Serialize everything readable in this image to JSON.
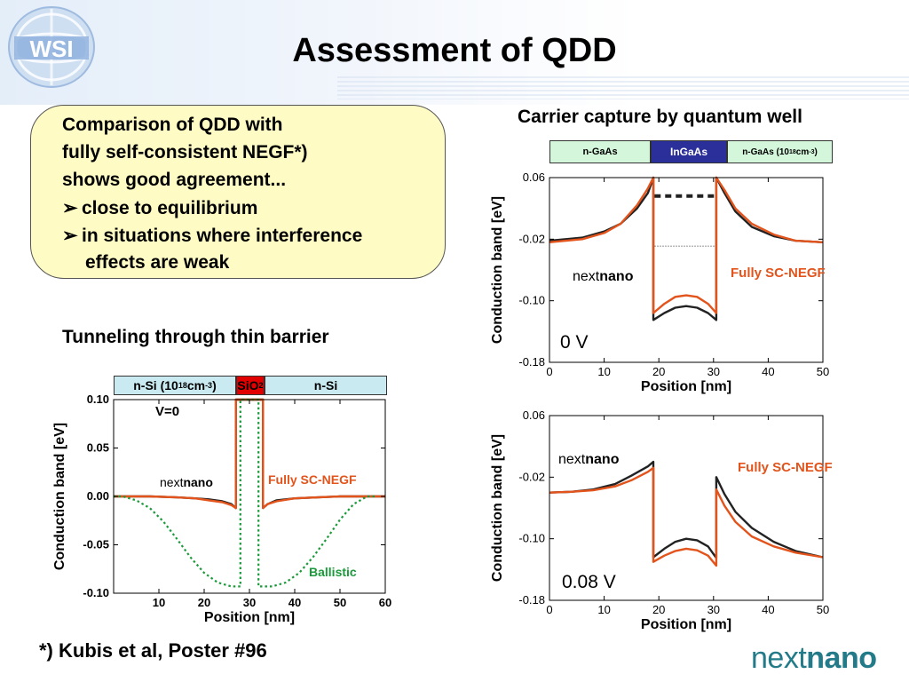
{
  "slide": {
    "title": "Assessment of QDD",
    "logo_text": "WSI",
    "brand_light": "next",
    "brand_bold": "nano",
    "footnote": "*) Kubis et al, Poster #96"
  },
  "summary": {
    "line1": "Comparison of QDD with",
    "line2": "fully self-consistent NEGF*)",
    "line3": "shows good agreement...",
    "bullet1": "close to equilibrium",
    "bullet2a": "in situations where interference",
    "bullet2b": "effects are weak",
    "bullet_glyph": "➢"
  },
  "headings": {
    "tunneling": "Tunneling through thin barrier",
    "capture": "Carrier capture by quantum well"
  },
  "layers": {
    "tunnel": [
      "n-Si (10",
      "18",
      " cm",
      "-3",
      ")",
      "SiO",
      "2",
      "n-Si"
    ],
    "well": [
      "n-GaAs",
      "InGaAs",
      "n-GaAs (10",
      "18",
      " cm",
      "-3",
      ")"
    ]
  },
  "colors": {
    "nextnano": "#222222",
    "negf": "#e2541c",
    "ballistic": "#1a9a3a",
    "brand": "#237b89",
    "box_fill": "#fffbc4",
    "layer_green": "#d4f7dc",
    "layer_blue": "#2a2f9a",
    "layer_red": "#e00000",
    "layer_cyan": "#c8eaf0"
  },
  "chart_data": [
    {
      "type": "line",
      "title": "Tunneling through thin barrier",
      "xlabel": "Position [nm]",
      "ylabel": "Conduction band [eV]",
      "xlim": [
        0,
        60
      ],
      "ylim": [
        -0.1,
        0.1
      ],
      "xticks": [
        "10",
        "20",
        "30",
        "40",
        "50",
        "60"
      ],
      "yticks": [
        "0.10",
        "0.05",
        "0.00",
        "-0.05",
        "-0.10"
      ],
      "annotation": "V=0",
      "series": [
        {
          "name": "nextnano",
          "x": [
            0,
            8,
            14,
            18,
            21,
            24,
            26,
            27,
            27,
            28,
            28,
            32,
            32,
            33,
            33,
            34,
            36,
            40,
            45,
            50,
            55,
            60
          ],
          "y": [
            0.0,
            0.0,
            -0.001,
            -0.002,
            -0.003,
            -0.005,
            -0.008,
            -0.012,
            0.1,
            0.1,
            0.1,
            0.1,
            0.1,
            0.1,
            -0.012,
            -0.008,
            -0.004,
            -0.002,
            -0.001,
            0.0,
            0.0,
            0.0
          ]
        },
        {
          "name": "Fully SC-NEGF",
          "x": [
            0,
            8,
            14,
            18,
            21,
            24,
            26,
            27,
            27,
            28,
            28,
            32,
            32,
            33,
            33,
            34,
            36,
            40,
            45,
            50,
            55,
            60
          ],
          "y": [
            0.0,
            0.0,
            -0.001,
            -0.002,
            -0.004,
            -0.006,
            -0.009,
            -0.012,
            0.1,
            0.1,
            0.1,
            0.1,
            0.1,
            0.1,
            -0.012,
            -0.008,
            -0.005,
            -0.002,
            -0.001,
            0.0,
            0.0,
            0.0
          ]
        },
        {
          "name": "Ballistic",
          "x": [
            0,
            2,
            5,
            8,
            11,
            14,
            17,
            20,
            23,
            26,
            27,
            27.5,
            28,
            28,
            32,
            32,
            32.5,
            33,
            35,
            38,
            41,
            44,
            47,
            50,
            53,
            56,
            58
          ],
          "y": [
            0.0,
            0.0,
            -0.004,
            -0.012,
            -0.026,
            -0.044,
            -0.063,
            -0.079,
            -0.089,
            -0.093,
            -0.093,
            -0.093,
            -0.093,
            0.1,
            0.1,
            -0.093,
            -0.093,
            -0.093,
            -0.093,
            -0.089,
            -0.079,
            -0.063,
            -0.044,
            -0.024,
            -0.008,
            0.0,
            0.0
          ]
        }
      ],
      "legend": [
        "nextnano",
        "Fully SC-NEGF",
        "Ballistic"
      ]
    },
    {
      "type": "line",
      "title": "Carrier capture by quantum well",
      "xlabel": "Position [nm]",
      "ylabel": "Conduction band [eV]",
      "xlim": [
        0,
        50
      ],
      "ylim": [
        -0.18,
        0.06
      ],
      "xticks": [
        "0",
        "10",
        "20",
        "30",
        "40",
        "50"
      ],
      "yticks": [
        "0.06",
        "-0.02",
        "-0.10",
        "-0.18"
      ],
      "annotation": "0 V",
      "series": [
        {
          "name": "nextnano",
          "x": [
            0,
            6,
            10,
            13,
            16,
            18,
            19,
            19,
            21,
            23,
            25,
            27,
            29,
            30.5,
            30.5,
            32,
            34,
            37,
            41,
            45,
            50
          ],
          "y": [
            -0.022,
            -0.018,
            -0.01,
            0.0,
            0.02,
            0.04,
            0.06,
            -0.125,
            -0.116,
            -0.109,
            -0.107,
            -0.109,
            -0.116,
            -0.125,
            0.06,
            0.04,
            0.016,
            -0.004,
            -0.016,
            -0.022,
            -0.024
          ]
        },
        {
          "name": "Fully SC-NEGF",
          "x": [
            0,
            6,
            10,
            13,
            16,
            18,
            19,
            19,
            21,
            23,
            25,
            27,
            29,
            30.5,
            30.5,
            32,
            34,
            37,
            41,
            45,
            50
          ],
          "y": [
            -0.024,
            -0.02,
            -0.012,
            0.0,
            0.024,
            0.046,
            0.06,
            -0.116,
            -0.104,
            -0.095,
            -0.093,
            -0.095,
            -0.104,
            -0.116,
            0.06,
            0.044,
            0.02,
            0.0,
            -0.014,
            -0.022,
            -0.024
          ]
        }
      ],
      "legend": [
        "nextnano",
        "Fully SC-NEGF"
      ]
    },
    {
      "type": "line",
      "title": "Carrier capture by quantum well",
      "xlabel": "Position [nm]",
      "ylabel": "Conduction band [eV]",
      "xlim": [
        0,
        50
      ],
      "ylim": [
        -0.18,
        0.06
      ],
      "xticks": [
        "0",
        "10",
        "20",
        "30",
        "40",
        "50"
      ],
      "yticks": [
        "0.06",
        "-0.02",
        "-0.10",
        "-0.18"
      ],
      "annotation": "0.08 V",
      "series": [
        {
          "name": "nextnano",
          "x": [
            0,
            4,
            8,
            12,
            15,
            18,
            19,
            19,
            21,
            23,
            25,
            27,
            29,
            30.5,
            30.5,
            32,
            34,
            37,
            41,
            45,
            50
          ],
          "y": [
            -0.04,
            -0.039,
            -0.036,
            -0.029,
            -0.018,
            -0.006,
            0.0,
            -0.124,
            -0.113,
            -0.104,
            -0.1,
            -0.102,
            -0.11,
            -0.125,
            -0.02,
            -0.042,
            -0.065,
            -0.086,
            -0.104,
            -0.116,
            -0.124
          ]
        },
        {
          "name": "Fully SC-NEGF",
          "x": [
            0,
            4,
            8,
            12,
            15,
            18,
            19,
            19,
            21,
            23,
            25,
            27,
            29,
            30.5,
            30.5,
            32,
            34,
            37,
            41,
            45,
            50
          ],
          "y": [
            -0.04,
            -0.039,
            -0.037,
            -0.032,
            -0.024,
            -0.013,
            -0.008,
            -0.13,
            -0.122,
            -0.116,
            -0.113,
            -0.115,
            -0.122,
            -0.135,
            -0.036,
            -0.057,
            -0.078,
            -0.097,
            -0.11,
            -0.118,
            -0.124
          ]
        }
      ],
      "legend": [
        "nextnano",
        "Fully SC-NEGF"
      ]
    }
  ]
}
